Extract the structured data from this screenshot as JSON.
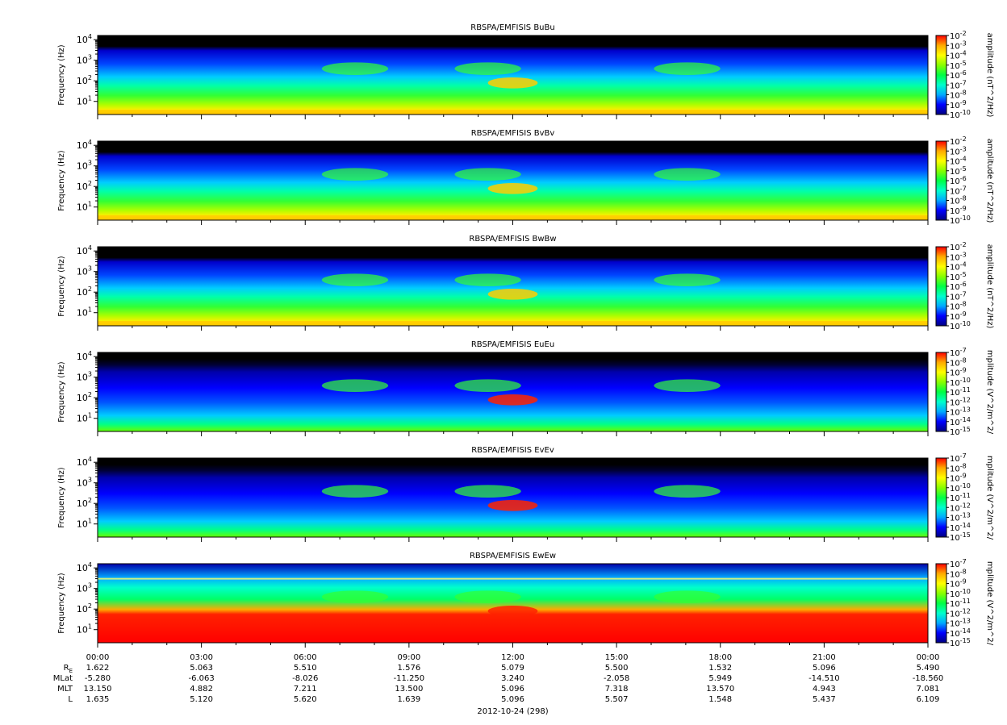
{
  "figure": {
    "date_label": "2012-10-24 (298)",
    "ylabel": "Frequency (Hz)",
    "colormap": [
      "#000080",
      "#0000ff",
      "#00aaff",
      "#00ffcc",
      "#00ff44",
      "#88ff00",
      "#ffff00",
      "#ffaa00",
      "#ff0000"
    ],
    "background_color": "#000000"
  },
  "chart_data": [
    {
      "type": "heatmap",
      "title": "RBSPA/EMFISIS  BuBu",
      "ylabel": "Frequency (Hz)",
      "y_scale": "log",
      "y_tick_exponents": [
        "1",
        "2",
        "3",
        "4"
      ],
      "colorbar_label": "amplitude (nT^2/Hz)",
      "colorbar_exponents": [
        "-2",
        "-3",
        "-4",
        "-5",
        "-6",
        "-7",
        "-8",
        "-9",
        "-10"
      ]
    },
    {
      "type": "heatmap",
      "title": "RBSPA/EMFISIS  BvBv",
      "ylabel": "Frequency (Hz)",
      "y_scale": "log",
      "y_tick_exponents": [
        "1",
        "2",
        "3",
        "4"
      ],
      "colorbar_label": "amplitude (nT^2/Hz)",
      "colorbar_exponents": [
        "-2",
        "-3",
        "-4",
        "-5",
        "-6",
        "-7",
        "-8",
        "-9",
        "-10"
      ]
    },
    {
      "type": "heatmap",
      "title": "RBSPA/EMFISIS  BwBw",
      "ylabel": "Frequency (Hz)",
      "y_scale": "log",
      "y_tick_exponents": [
        "1",
        "2",
        "3",
        "4"
      ],
      "colorbar_label": "amplitude (nT^2/Hz)",
      "colorbar_exponents": [
        "-2",
        "-3",
        "-4",
        "-5",
        "-6",
        "-7",
        "-8",
        "-9",
        "-10"
      ]
    },
    {
      "type": "heatmap",
      "title": "RBSPA/EMFISIS  EuEu",
      "ylabel": "Frequency (Hz)",
      "y_scale": "log",
      "y_tick_exponents": [
        "1",
        "2",
        "3",
        "4"
      ],
      "colorbar_label": "mplitude (V^2/m^2/",
      "colorbar_exponents": [
        "-7",
        "-8",
        "-9",
        "-10",
        "-11",
        "-12",
        "-13",
        "-14",
        "-15"
      ]
    },
    {
      "type": "heatmap",
      "title": "RBSPA/EMFISIS  EvEv",
      "ylabel": "Frequency (Hz)",
      "y_scale": "log",
      "y_tick_exponents": [
        "1",
        "2",
        "3",
        "4"
      ],
      "colorbar_label": "mplitude (V^2/m^2/",
      "colorbar_exponents": [
        "-7",
        "-8",
        "-9",
        "-10",
        "-11",
        "-12",
        "-13",
        "-14",
        "-15"
      ]
    },
    {
      "type": "heatmap",
      "title": "RBSPA/EMFISIS  EwEw",
      "ylabel": "Frequency (Hz)",
      "y_scale": "log",
      "y_tick_exponents": [
        "1",
        "2",
        "3",
        "4"
      ],
      "colorbar_label": "mplitude (V^2/m^2/",
      "colorbar_exponents": [
        "-7",
        "-8",
        "-9",
        "-10",
        "-11",
        "-12",
        "-13",
        "-14",
        "-15"
      ]
    }
  ],
  "ephemeris": {
    "time_labels": [
      "00:00",
      "03:00",
      "06:00",
      "09:00",
      "12:00",
      "15:00",
      "18:00",
      "21:00",
      "00:00"
    ],
    "rows": [
      {
        "label": "R",
        "sub": "E",
        "values": [
          "1.622",
          "5.063",
          "5.510",
          "1.576",
          "5.079",
          "5.500",
          "1.532",
          "5.096",
          "5.490"
        ]
      },
      {
        "label": "MLat",
        "sub": "",
        "values": [
          "-5.280",
          "-6.063",
          "-8.026",
          "-11.250",
          "3.240",
          "-2.058",
          "5.949",
          "-14.510",
          "-18.560"
        ]
      },
      {
        "label": "MLT",
        "sub": "",
        "values": [
          "13.150",
          "4.882",
          "7.211",
          "13.500",
          "5.096",
          "7.318",
          "13.570",
          "4.943",
          "7.081"
        ]
      },
      {
        "label": "L",
        "sub": "",
        "values": [
          "1.635",
          "5.120",
          "5.620",
          "1.639",
          "5.096",
          "5.507",
          "1.548",
          "5.437",
          "6.109"
        ]
      }
    ]
  }
}
